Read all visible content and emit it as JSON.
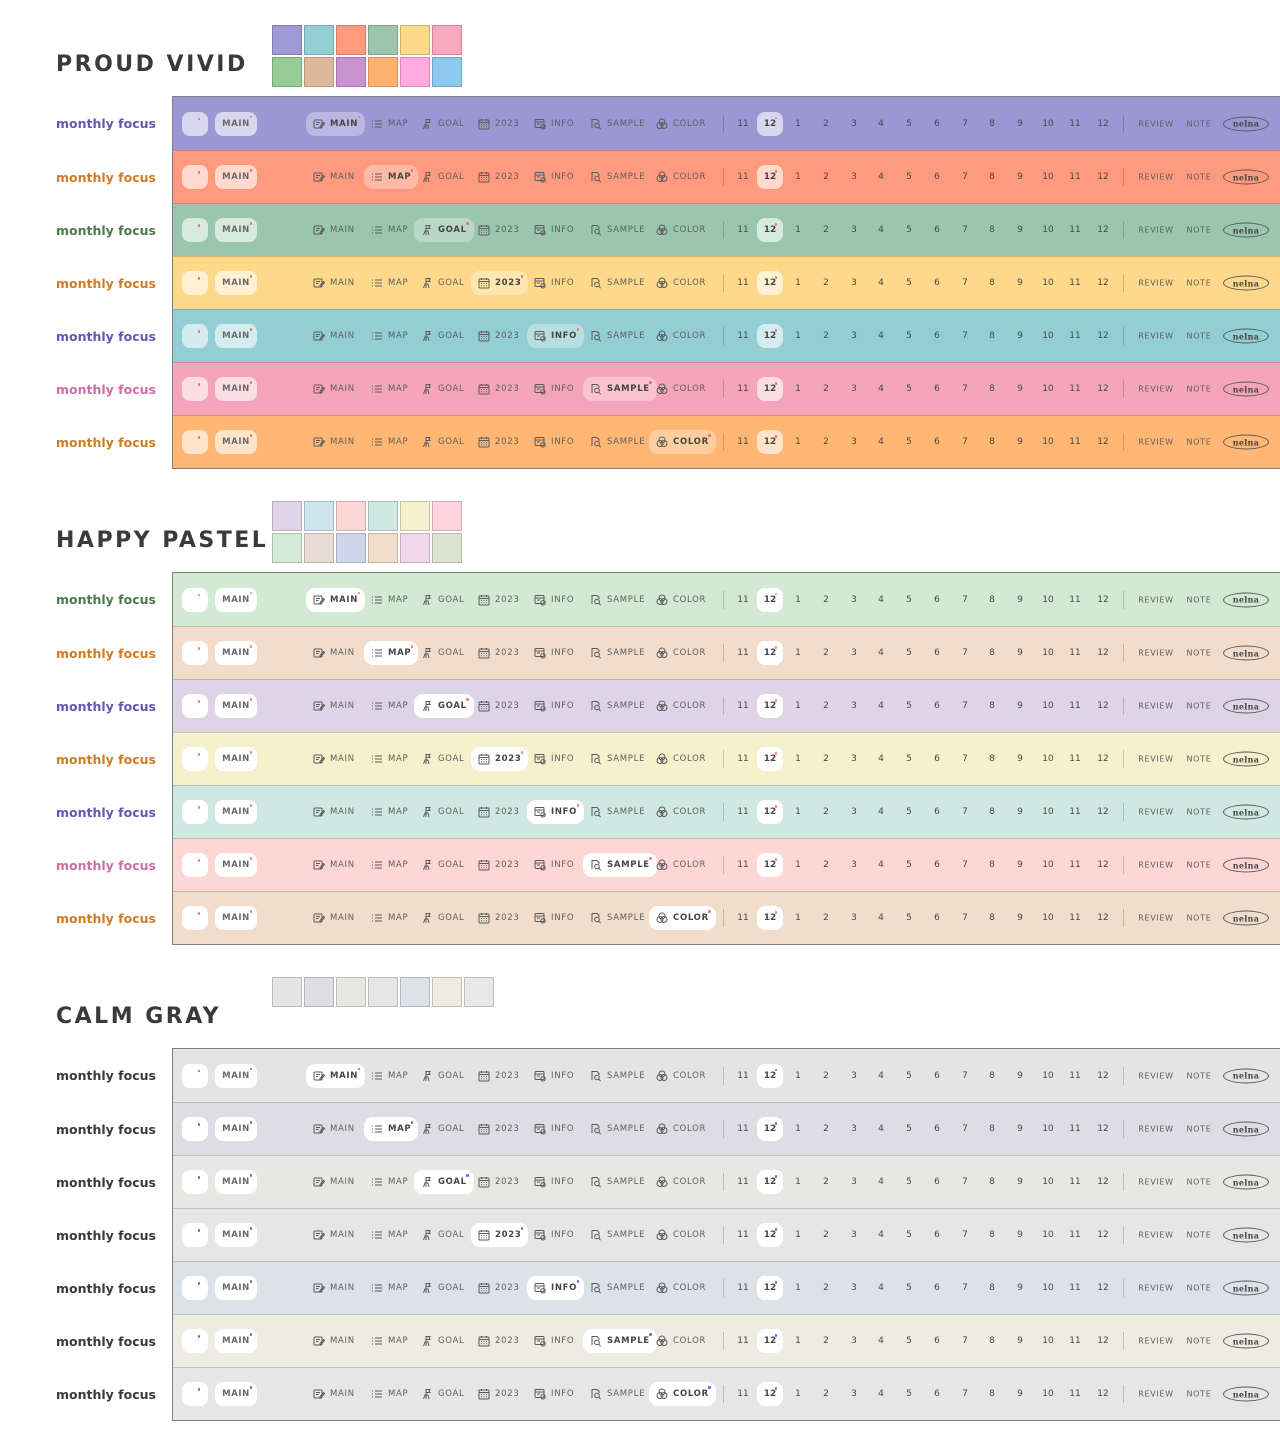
{
  "labels": {
    "focus": "monthly focus",
    "main_pill": "MAIN",
    "review": "REVIEW",
    "note": "NOTE",
    "logo": "nelna",
    "current_month": "12"
  },
  "tabs": [
    {
      "label": "MAIN",
      "icon": "notebook-edit-icon"
    },
    {
      "label": "MAP",
      "icon": "list-icon"
    },
    {
      "label": "GOAL",
      "icon": "flag-hand-icon"
    },
    {
      "label": "2023",
      "icon": "calendar-icon"
    },
    {
      "label": "INFO",
      "icon": "info-board-icon"
    },
    {
      "label": "SAMPLE",
      "icon": "magnifier-doc-icon"
    },
    {
      "label": "COLOR",
      "icon": "color-circles-icon"
    }
  ],
  "months": [
    "11",
    "12",
    "1",
    "2",
    "3",
    "4",
    "5",
    "6",
    "7",
    "8",
    "9",
    "10",
    "11",
    "12"
  ],
  "sections": [
    {
      "title": "PROUD VIVID",
      "swatch_columns": 6,
      "swatches": [
        "#9f99d6",
        "#93d0d3",
        "#ff9a7e",
        "#9bc5ad",
        "#ffd98a",
        "#f6a8bd",
        "#98cc95",
        "#ddb89a",
        "#c993d2",
        "#ffb26f",
        "#ffabe1",
        "#8ecaf0"
      ],
      "pill_bg": "rgba(255,255,255,0.62)",
      "active_bg": "rgba(255,255,255,0.32)",
      "dot_color": "#ff6a6a",
      "bars": [
        {
          "bg": "#9b96d4",
          "text": "#6b53b3",
          "active": 0
        },
        {
          "bg": "#ff9a7e",
          "text": "#cf7d24",
          "active": 1
        },
        {
          "bg": "#9ac6ae",
          "text": "#4b7a4f",
          "active": 2
        },
        {
          "bg": "#ffd98b",
          "text": "#cf7d24",
          "active": 3
        },
        {
          "bg": "#92ced3",
          "text": "#6b53b3",
          "active": 4
        },
        {
          "bg": "#f5a5bb",
          "text": "#cc6fa8",
          "active": 5
        },
        {
          "bg": "#ffb773",
          "text": "#cf7d24",
          "active": 6
        }
      ]
    },
    {
      "title": "HAPPY PASTEL",
      "swatch_columns": 6,
      "swatches": [
        "#ddd5e7",
        "#cde5ee",
        "#ffd6d6",
        "#cfe8e1",
        "#f6f1cd",
        "#ffd3df",
        "#d3ead6",
        "#e7dbd4",
        "#cfd6ec",
        "#f1ddcb",
        "#f0d8ea",
        "#dce3cf"
      ],
      "pill_bg": "#ffffff",
      "active_bg": "#ffffff",
      "dot_color": "#ff7a6a",
      "bars": [
        {
          "bg": "#d2ead4",
          "text": "#4b7a4f",
          "active": 0
        },
        {
          "bg": "#f2ddcc",
          "text": "#cf7d24",
          "active": 1
        },
        {
          "bg": "#ddd5e7",
          "text": "#6b53b3",
          "active": 2
        },
        {
          "bg": "#f6f0cc",
          "text": "#cf7d24",
          "active": 3
        },
        {
          "bg": "#cfe8e1",
          "text": "#6b53b3",
          "active": 4
        },
        {
          "bg": "#ffd6d6",
          "text": "#cc6fa8",
          "active": 5
        },
        {
          "bg": "#f1ddcc",
          "text": "#cf7d24",
          "active": 6
        }
      ]
    },
    {
      "title": "CALM GRAY",
      "swatch_columns": 7,
      "swatches": [
        "#e4e4e4",
        "#dedde3",
        "#e7e8e4",
        "#e6e6e6",
        "#dce3e8",
        "#eeebe3",
        "#e8e8e8"
      ],
      "pill_bg": "#ffffff",
      "active_bg": "#ffffff",
      "dot_color": "#7a5ce0",
      "bars": [
        {
          "bg": "#e4e4e4",
          "text": "#3a3a3a",
          "active": 0
        },
        {
          "bg": "#dedde3",
          "text": "#3a3a3a",
          "active": 1
        },
        {
          "bg": "#e7e8e4",
          "text": "#3a3a3a",
          "active": 2
        },
        {
          "bg": "#e6e6e6",
          "text": "#3a3a3a",
          "active": 3
        },
        {
          "bg": "#dce3e8",
          "text": "#3a3a3a",
          "active": 4
        },
        {
          "bg": "#eeebe3",
          "text": "#3a3a3a",
          "active": 5
        },
        {
          "bg": "#e6e6e6",
          "text": "#3a3a3a",
          "active": 6
        }
      ]
    }
  ]
}
